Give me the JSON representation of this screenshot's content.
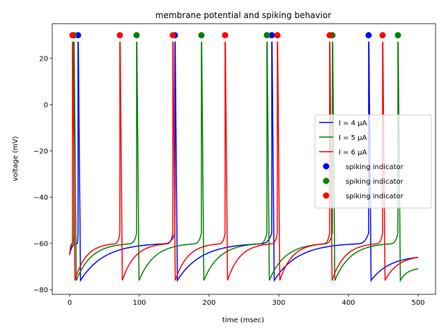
{
  "chart_data": {
    "type": "line",
    "title": "membrane potential and spiking behavior",
    "xlabel": "time (msec)",
    "ylabel": "voltage (mV)",
    "xlim": [
      -25,
      525
    ],
    "ylim": [
      -82,
      35
    ],
    "xticks": [
      0,
      100,
      200,
      300,
      400,
      500
    ],
    "yticks": [
      -80,
      -60,
      -40,
      -20,
      0,
      20
    ],
    "grid": false,
    "legend_position": "center-right",
    "resting_potential": -65,
    "reset_potential": -76,
    "spike_peak": 30,
    "series": [
      {
        "name": "I = 4 μA",
        "color": "#0000ff",
        "spike_times": [
          12,
          151,
          290,
          429
        ],
        "end_value": -66
      },
      {
        "name": "I = 5 μA",
        "color": "#008000",
        "spike_times": [
          6,
          96,
          189,
          283,
          377,
          471
        ],
        "end_value": -71
      },
      {
        "name": "I = 6 μA",
        "color": "#ff0000",
        "spike_times": [
          4,
          72,
          148,
          223,
          298,
          373,
          449
        ],
        "end_value": -66
      }
    ],
    "spike_markers": [
      {
        "name": "spiking indicator",
        "color": "#0000ff",
        "x": [
          12,
          151,
          290,
          429
        ],
        "y": 30
      },
      {
        "name": "spiking indicator",
        "color": "#008000",
        "x": [
          6,
          96,
          189,
          283,
          377,
          471
        ],
        "y": 30
      },
      {
        "name": "spiking indicator",
        "color": "#ff0000",
        "x": [
          4,
          72,
          148,
          223,
          298,
          373,
          449
        ],
        "y": 30
      }
    ]
  }
}
